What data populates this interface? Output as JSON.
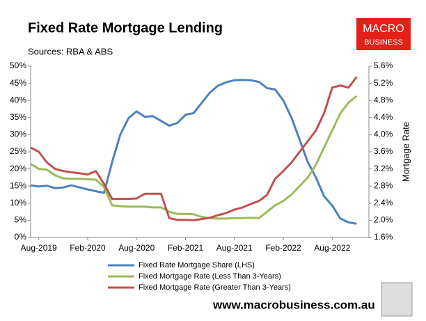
{
  "chart_data": {
    "type": "line",
    "title": "Fixed Rate Mortgage Lending",
    "subtitle": "Sources: RBA & ABS",
    "y2_label": "Mortgage Rate",
    "categories": [
      null,
      "Aug-2019",
      null,
      null,
      null,
      null,
      null,
      "Feb-2020",
      null,
      null,
      null,
      null,
      null,
      "Aug-2020",
      null,
      null,
      null,
      null,
      null,
      "Feb-2021",
      null,
      null,
      null,
      null,
      null,
      "Aug-2021",
      null,
      null,
      null,
      null,
      null,
      "Feb-2022",
      null,
      null,
      null,
      null,
      null,
      "Aug-2022",
      null,
      null,
      null
    ],
    "series": [
      {
        "name": "Fixed Rate Mortgage Share (LHS)",
        "color": "#4f81bd",
        "values": [
          15.2,
          14.9,
          15.1,
          14.4,
          14.6,
          15.2,
          14.6,
          14.0,
          13.5,
          13.0,
          22,
          30,
          34.8,
          36.8,
          35.2,
          35.4,
          34,
          32.6,
          33.4,
          35.8,
          36.3,
          39.3,
          42.3,
          44.3,
          45.3,
          45.9,
          46,
          45.9,
          45.4,
          43.6,
          43.2,
          40,
          35,
          28.5,
          22,
          17.5,
          12,
          9.3,
          5.5,
          4.4,
          4.0
        ]
      },
      {
        "name": "Fixed Mortgage Rate (Less Than 3-Years)",
        "color": "#9bbb59",
        "axis": "y2",
        "values": [
          3.32,
          3.2,
          3.18,
          3.05,
          2.98,
          2.97,
          2.97,
          2.96,
          2.95,
          2.78,
          2.35,
          2.33,
          2.32,
          2.32,
          2.32,
          2.3,
          2.3,
          2.2,
          2.15,
          2.15,
          2.14,
          2.08,
          2.05,
          2.04,
          2.04,
          2.05,
          2.05,
          2.06,
          2.05,
          2.2,
          2.35,
          2.45,
          2.6,
          2.8,
          3.0,
          3.3,
          3.7,
          4.1,
          4.5,
          4.75,
          4.9
        ]
      },
      {
        "name": "Fixed Mortgage Rate (Greater Than 3-Years)",
        "color": "#c0504d",
        "axis": "y2",
        "values": [
          3.7,
          3.6,
          3.35,
          3.2,
          3.15,
          3.12,
          3.1,
          3.07,
          3.15,
          2.85,
          2.5,
          2.5,
          2.5,
          2.51,
          2.62,
          2.62,
          2.62,
          2.05,
          2.01,
          2.01,
          2.0,
          2.03,
          2.06,
          2.12,
          2.17,
          2.25,
          2.3,
          2.38,
          2.45,
          2.59,
          2.97,
          3.15,
          3.35,
          3.6,
          3.85,
          4.1,
          4.5,
          5.1,
          5.15,
          5.1,
          5.35
        ]
      }
    ],
    "ylim": [
      0,
      50
    ],
    "yticks": [
      {
        "value": 0,
        "label": "0%"
      },
      {
        "value": 5,
        "label": "5%"
      },
      {
        "value": 10,
        "label": "10%"
      },
      {
        "value": 15,
        "label": "15%"
      },
      {
        "value": 20,
        "label": "20%"
      },
      {
        "value": 25,
        "label": "25%"
      },
      {
        "value": 30,
        "label": "30%"
      },
      {
        "value": 35,
        "label": "35%"
      },
      {
        "value": 40,
        "label": "40%"
      },
      {
        "value": 45,
        "label": "45%"
      },
      {
        "value": 50,
        "label": "50%"
      }
    ],
    "y2lim": [
      1.6,
      5.6
    ],
    "y2ticks": [
      {
        "value": 1.6,
        "label": "1.6%"
      },
      {
        "value": 2.0,
        "label": "2.0%"
      },
      {
        "value": 2.4,
        "label": "2.4%"
      },
      {
        "value": 2.8,
        "label": "2.8%"
      },
      {
        "value": 3.2,
        "label": "3.2%"
      },
      {
        "value": 3.6,
        "label": "3.6%"
      },
      {
        "value": 4.0,
        "label": "4.0%"
      },
      {
        "value": 4.4,
        "label": "4.4%"
      },
      {
        "value": 4.8,
        "label": "4.8%"
      },
      {
        "value": 5.2,
        "label": "5.2%"
      },
      {
        "value": 5.6,
        "label": "5.6%"
      }
    ],
    "grid": false,
    "legend": "bottom"
  },
  "branding": {
    "logo_top": "MACRO",
    "logo_bottom": "BUSINESS",
    "url": "www.macrobusiness.com.au"
  }
}
